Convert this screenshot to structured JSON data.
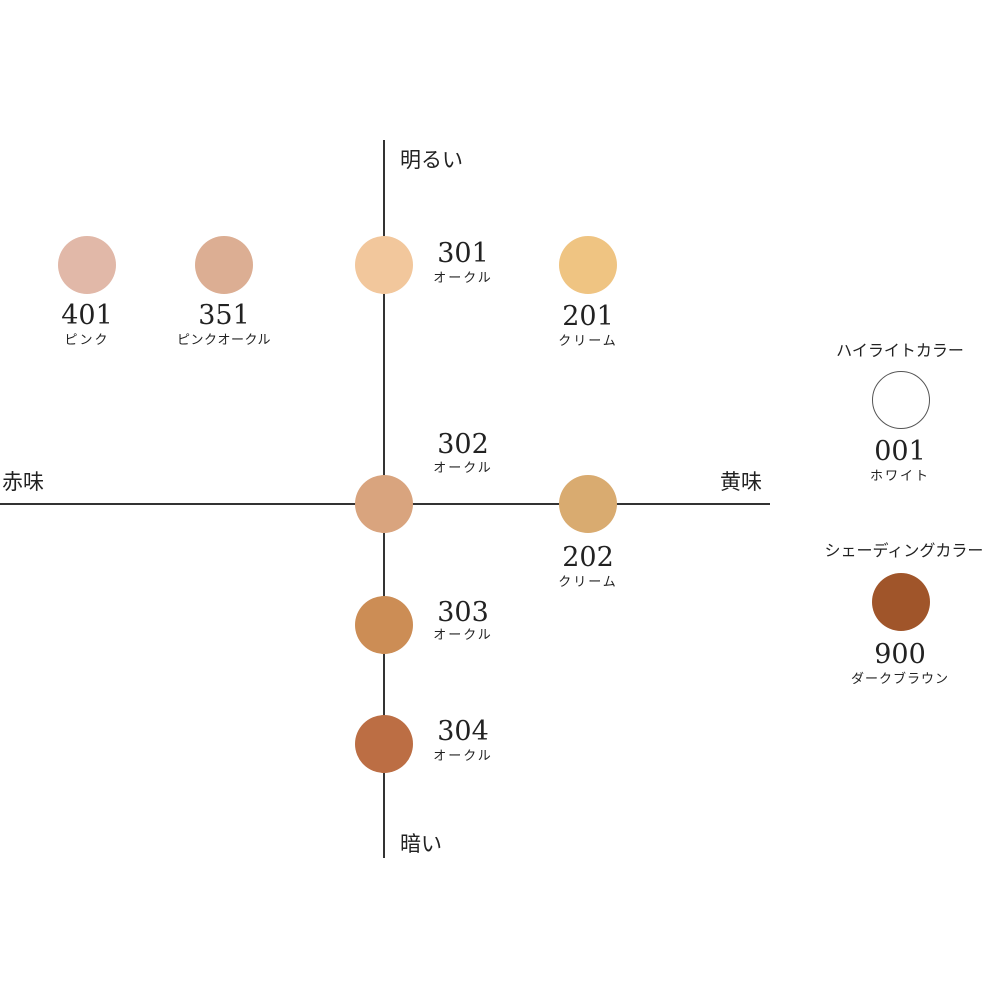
{
  "axes": {
    "top_label": "明るい",
    "bottom_label": "暗い",
    "left_label": "赤味",
    "right_label": "黄味"
  },
  "swatches": {
    "s401": {
      "code": "401",
      "name": "ピンク",
      "color": "#e1b8a8"
    },
    "s351": {
      "code": "351",
      "name": "ピンクオークル",
      "color": "#dcae93"
    },
    "s301": {
      "code": "301",
      "name": "オークル",
      "color": "#f2c79c"
    },
    "s201": {
      "code": "201",
      "name": "クリーム",
      "color": "#efc482"
    },
    "s302": {
      "code": "302",
      "name": "オークル",
      "color": "#d9a47e"
    },
    "s202": {
      "code": "202",
      "name": "クリーム",
      "color": "#d9ab70"
    },
    "s303": {
      "code": "303",
      "name": "オークル",
      "color": "#cc8d55"
    },
    "s304": {
      "code": "304",
      "name": "オークル",
      "color": "#bc6e44"
    }
  },
  "highlight": {
    "heading": "ハイライトカラー",
    "code": "001",
    "name": "ホワイト",
    "color": "#ffffff"
  },
  "shading": {
    "heading": "シェーディングカラー",
    "code": "900",
    "name": "ダークブラウン",
    "color": "#a0552a"
  }
}
